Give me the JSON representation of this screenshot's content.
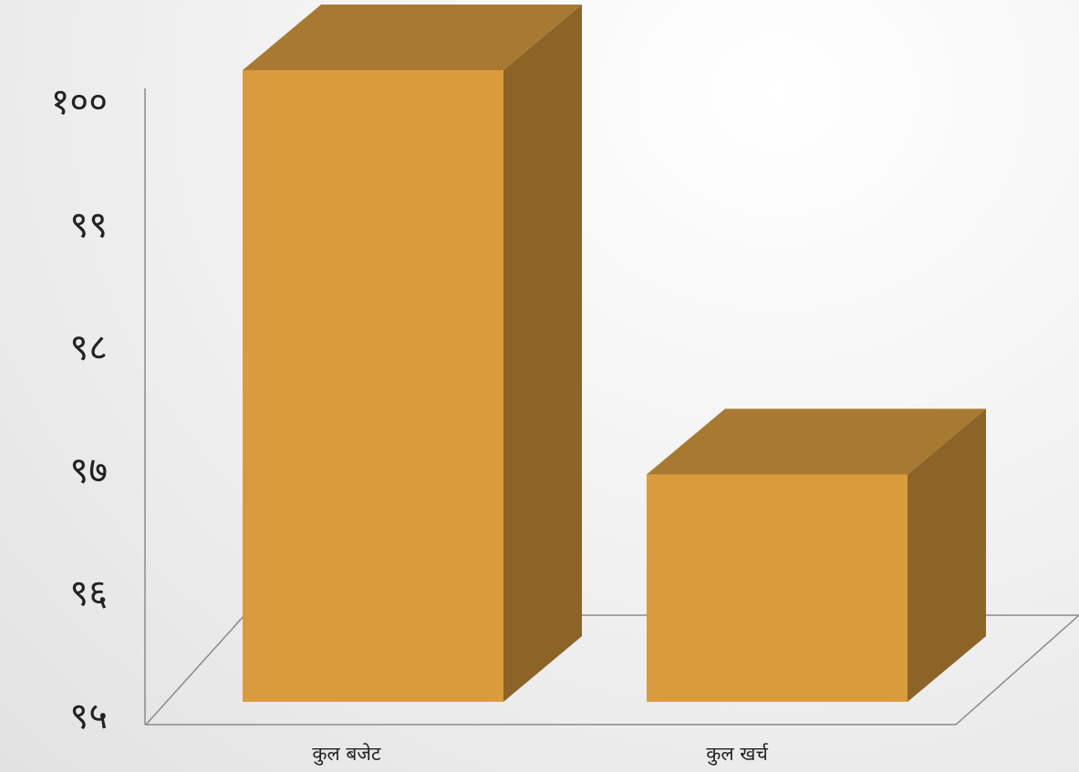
{
  "chart_data": {
    "type": "bar",
    "style": "3d-column",
    "categories": [
      "कुल बजेट",
      "कुल खर्च"
    ],
    "values": [
      100,
      96.8
    ],
    "ylim": [
      95,
      100
    ],
    "y_ticks": [
      95,
      96,
      97,
      98,
      99,
      100
    ],
    "y_tick_labels": [
      "९५",
      "९६",
      "९७",
      "९८",
      "९९",
      "१००"
    ],
    "title": "",
    "xlabel": "",
    "ylabel": "",
    "grid": false,
    "legend": "none",
    "colors": {
      "bar_front": "#D99B3C",
      "bar_top": "#A87A31",
      "bar_side": "#8C6428",
      "axis": "#8A8A8A",
      "text": "#222222"
    }
  }
}
